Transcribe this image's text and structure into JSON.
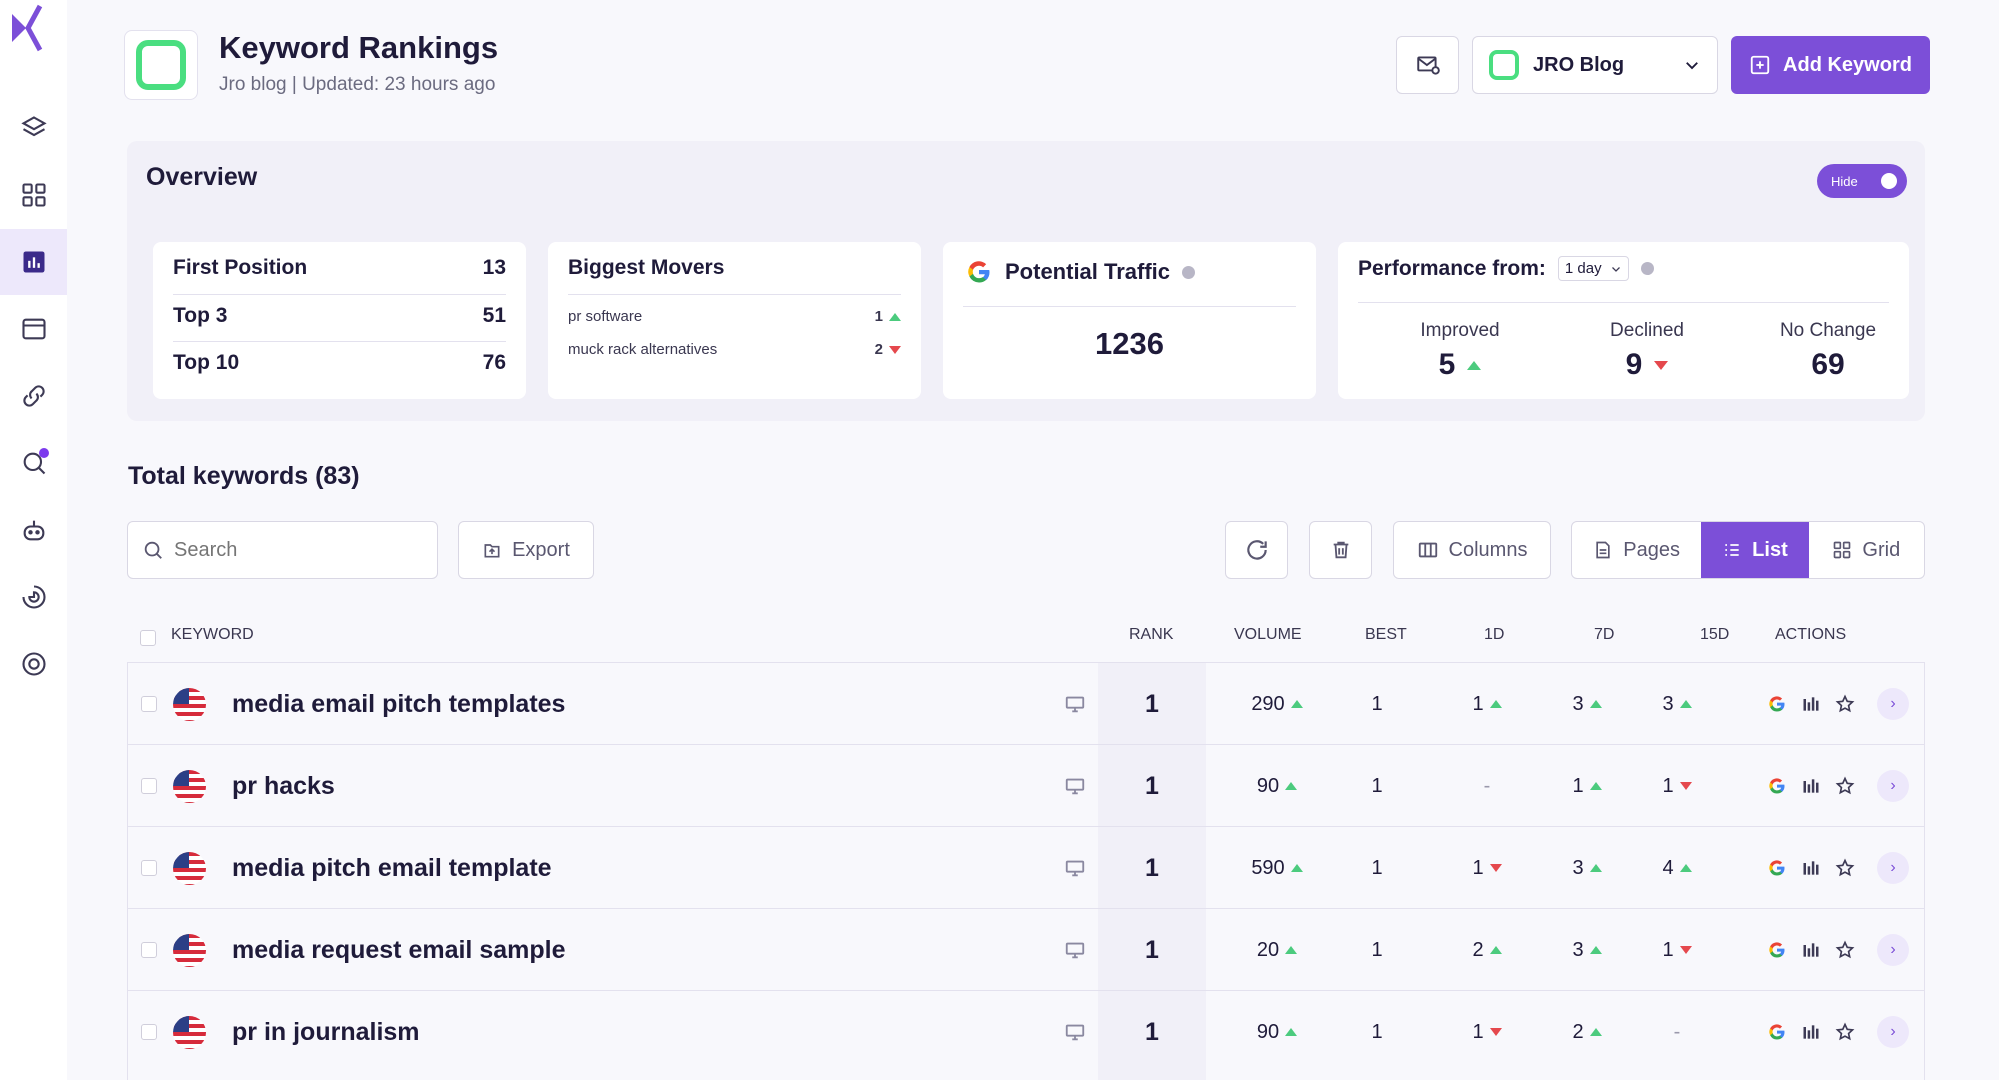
{
  "colors": {
    "accent": "#7c4fd8",
    "up": "#4ccb7e",
    "down": "#e5484d",
    "site_icon": "#4ade80"
  },
  "header": {
    "title": "Keyword Rankings",
    "subtitle": "Jro blog | Updated: 23 hours ago",
    "site_select": "JRO Blog",
    "add_keyword": "Add Keyword"
  },
  "overview": {
    "title": "Overview",
    "hide_label": "Hide",
    "positions": [
      {
        "label": "First Position",
        "value": "13"
      },
      {
        "label": "Top 3",
        "value": "51"
      },
      {
        "label": "Top 10",
        "value": "76"
      }
    ],
    "movers": {
      "title": "Biggest Movers",
      "items": [
        {
          "keyword": "pr software",
          "value": "1",
          "dir": "up"
        },
        {
          "keyword": "muck rack alternatives",
          "value": "2",
          "dir": "down"
        }
      ]
    },
    "traffic": {
      "title": "Potential Traffic",
      "value": "1236"
    },
    "performance": {
      "title": "Performance from:",
      "period": "1 day",
      "improved": {
        "label": "Improved",
        "value": "5"
      },
      "declined": {
        "label": "Declined",
        "value": "9"
      },
      "no_change": {
        "label": "No Change",
        "value": "69"
      }
    }
  },
  "keywords": {
    "total_label": "Total keywords (83)",
    "search_placeholder": "Search",
    "export": "Export",
    "columns": "Columns",
    "views": {
      "pages": "Pages",
      "list": "List",
      "grid": "Grid"
    },
    "headers": {
      "keyword": "KEYWORD",
      "rank": "RANK",
      "volume": "VOLUME",
      "best": "BEST",
      "d1": "1D",
      "d7": "7D",
      "d15": "15D",
      "actions": "ACTIONS"
    },
    "rows": [
      {
        "keyword": "media email pitch templates",
        "rank": "1",
        "volume": "290",
        "best": "1",
        "d1": "1",
        "d1_dir": "up",
        "d7": "3",
        "d7_dir": "up",
        "d15": "3",
        "d15_dir": "up"
      },
      {
        "keyword": "pr hacks",
        "rank": "1",
        "volume": "90",
        "best": "1",
        "d1": "-",
        "d1_dir": "none",
        "d7": "1",
        "d7_dir": "up",
        "d15": "1",
        "d15_dir": "down"
      },
      {
        "keyword": "media pitch email template",
        "rank": "1",
        "volume": "590",
        "best": "1",
        "d1": "1",
        "d1_dir": "down",
        "d7": "3",
        "d7_dir": "up",
        "d15": "4",
        "d15_dir": "up"
      },
      {
        "keyword": "media request email sample",
        "rank": "1",
        "volume": "20",
        "best": "1",
        "d1": "2",
        "d1_dir": "up",
        "d7": "3",
        "d7_dir": "up",
        "d15": "1",
        "d15_dir": "down"
      },
      {
        "keyword": "pr in journalism",
        "rank": "1",
        "volume": "90",
        "best": "1",
        "d1": "1",
        "d1_dir": "down",
        "d7": "2",
        "d7_dir": "up",
        "d15": "-",
        "d15_dir": "none"
      }
    ]
  }
}
